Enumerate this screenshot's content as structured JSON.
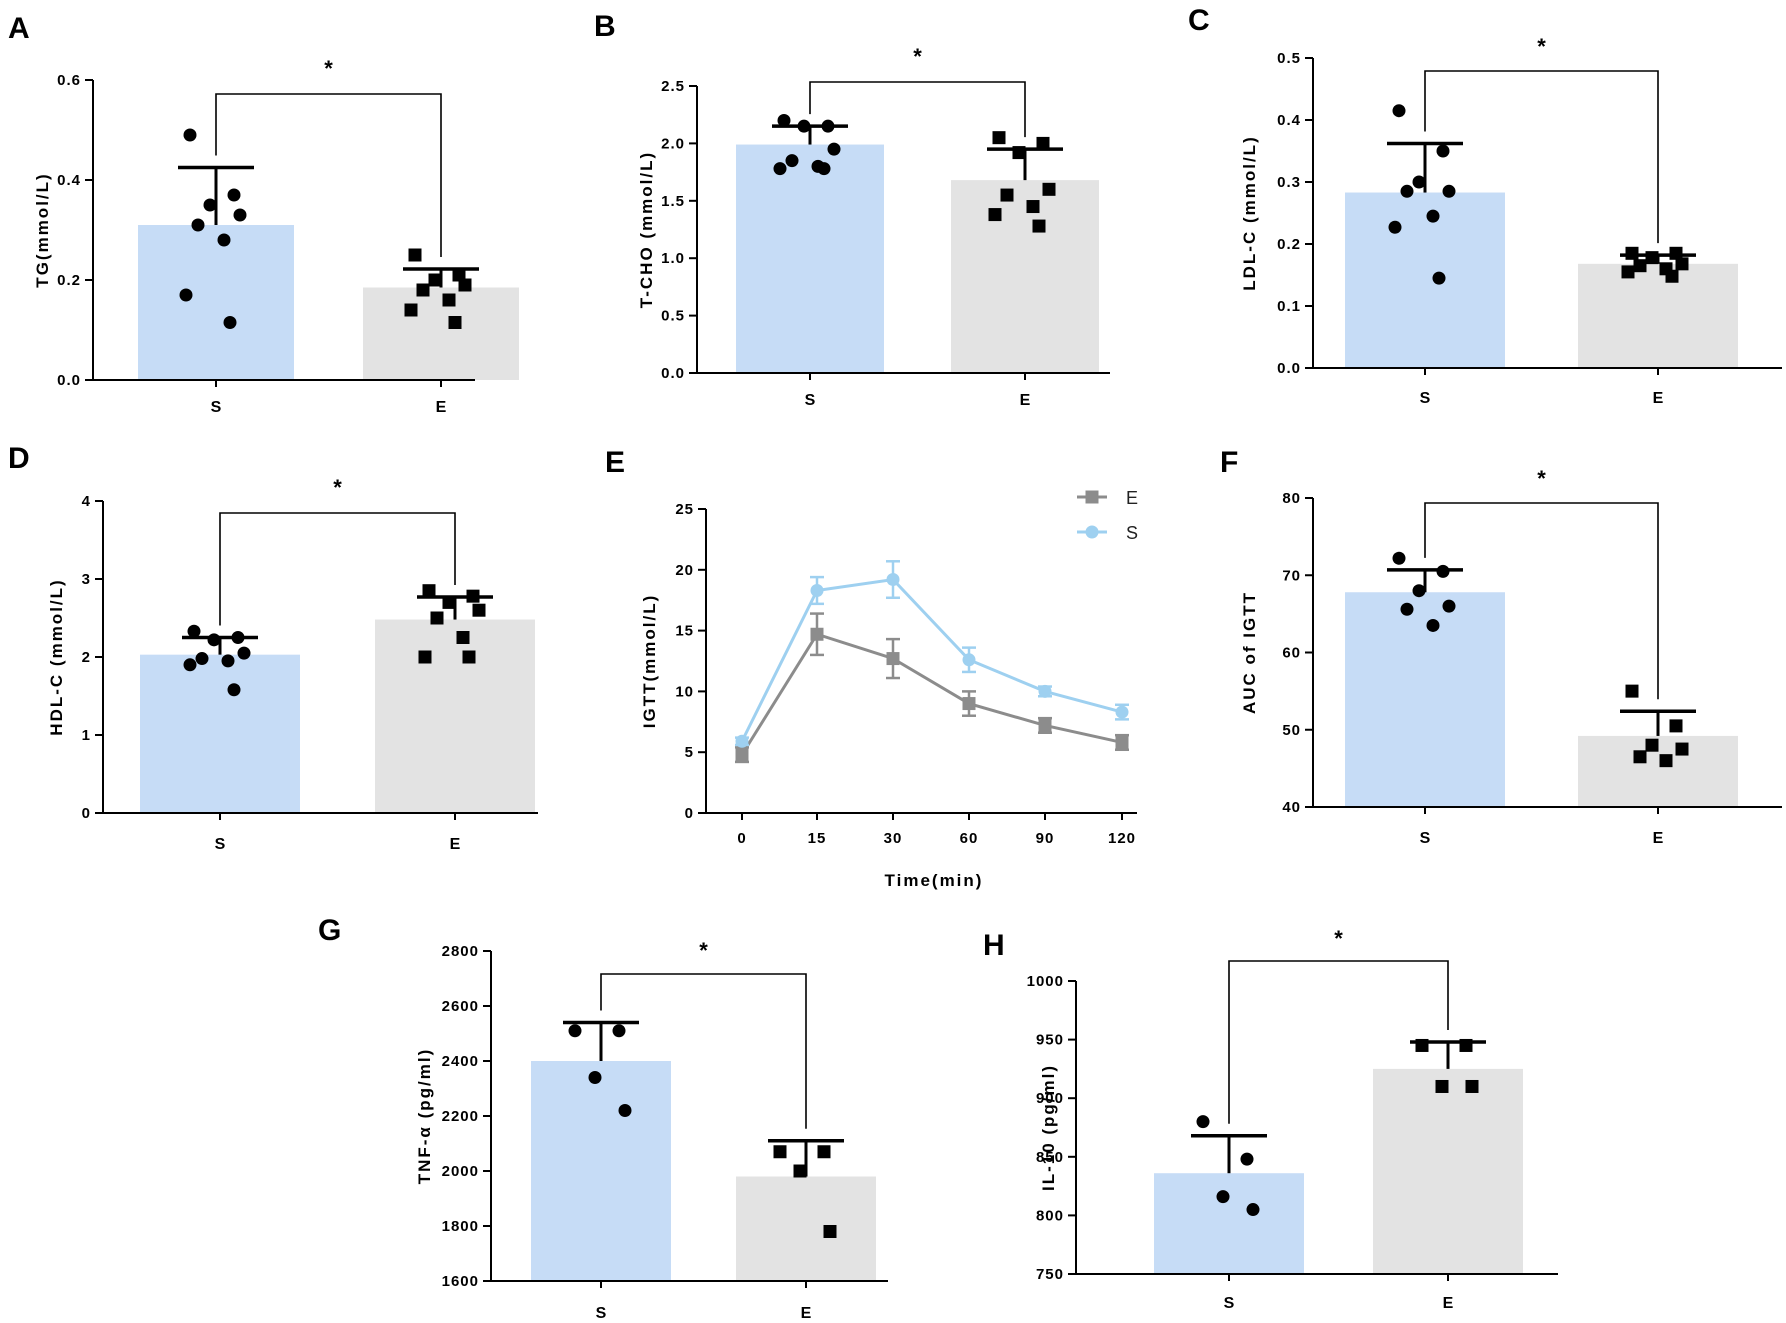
{
  "figure": {
    "colors": {
      "S": "#c6dcf6",
      "E": "#e3e3e3",
      "line_S": "#9ed0f0",
      "line_E": "#8c8c8c",
      "ink": "#000000"
    }
  },
  "chart_data": [
    {
      "panel": "A",
      "type": "bar",
      "ylabel": "TG(mmol/L)",
      "ylim": [
        0,
        0.6
      ],
      "yticks": [
        0.0,
        0.2,
        0.4,
        0.6
      ],
      "yticklabels": [
        "0.0",
        "0.2",
        "0.4",
        "0.6"
      ],
      "categories": [
        "S",
        "E"
      ],
      "means": [
        0.31,
        0.185
      ],
      "sd_upper": [
        0.425,
        0.222
      ],
      "points": [
        [
          0.49,
          0.37,
          0.35,
          0.33,
          0.31,
          0.28,
          0.17,
          0.115
        ],
        [
          0.25,
          0.21,
          0.2,
          0.19,
          0.18,
          0.16,
          0.14,
          0.115
        ]
      ],
      "significance": "*"
    },
    {
      "panel": "B",
      "type": "bar",
      "ylabel": "T-CHO (mmol/L)",
      "ylim": [
        0,
        2.5
      ],
      "yticks": [
        0,
        0.5,
        1.0,
        1.5,
        2.0,
        2.5
      ],
      "yticklabels": [
        "0.0",
        "0.5",
        "1.0",
        "1.5",
        "2.0",
        "2.5"
      ],
      "categories": [
        "S",
        "E"
      ],
      "means": [
        1.99,
        1.68
      ],
      "sd_upper": [
        2.15,
        1.95
      ],
      "points": [
        [
          2.2,
          2.15,
          2.15,
          1.95,
          1.85,
          1.8,
          1.78,
          1.78
        ],
        [
          2.05,
          2.0,
          1.92,
          1.6,
          1.55,
          1.45,
          1.38,
          1.28
        ]
      ],
      "significance": "*"
    },
    {
      "panel": "C",
      "type": "bar",
      "ylabel": "LDL-C (mmol/L)",
      "ylim": [
        0,
        0.5
      ],
      "yticks": [
        0,
        0.1,
        0.2,
        0.3,
        0.4,
        0.5
      ],
      "yticklabels": [
        "0.0",
        "0.1",
        "0.2",
        "0.3",
        "0.4",
        "0.5"
      ],
      "categories": [
        "S",
        "E"
      ],
      "means": [
        0.283,
        0.168
      ],
      "sd_upper": [
        0.362,
        0.182
      ],
      "points": [
        [
          0.415,
          0.35,
          0.3,
          0.285,
          0.285,
          0.245,
          0.227,
          0.145
        ],
        [
          0.185,
          0.185,
          0.178,
          0.168,
          0.165,
          0.16,
          0.155,
          0.148
        ]
      ],
      "significance": "*"
    },
    {
      "panel": "D",
      "type": "bar",
      "ylabel": "HDL-C (mmol/L)",
      "ylim": [
        0,
        4
      ],
      "yticks": [
        0,
        1,
        2,
        3,
        4
      ],
      "yticklabels": [
        "0",
        "1",
        "2",
        "3",
        "4"
      ],
      "categories": [
        "S",
        "E"
      ],
      "means": [
        2.03,
        2.48
      ],
      "sd_upper": [
        2.25,
        2.77
      ],
      "points": [
        [
          2.33,
          2.25,
          2.22,
          2.05,
          1.98,
          1.95,
          1.9,
          1.58
        ],
        [
          2.85,
          2.78,
          2.7,
          2.6,
          2.5,
          2.25,
          2.0,
          2.0
        ]
      ],
      "significance": "*"
    },
    {
      "panel": "E",
      "type": "line",
      "ylabel": "IGTT(mmol/L)",
      "xlabel": "Time(min)",
      "ylim": [
        0,
        25
      ],
      "yticks": [
        0,
        5,
        10,
        15,
        20,
        25
      ],
      "yticklabels": [
        "0",
        "5",
        "10",
        "15",
        "20",
        "25"
      ],
      "x": [
        0,
        15,
        30,
        60,
        90,
        120
      ],
      "xticklabels": [
        "0",
        "15",
        "30",
        "60",
        "90",
        "120"
      ],
      "series": [
        {
          "name": "E",
          "values": [
            4.8,
            14.7,
            12.7,
            9.0,
            7.2,
            5.8
          ],
          "errors": [
            0.6,
            1.7,
            1.6,
            1.0,
            0.6,
            0.6
          ]
        },
        {
          "name": "S",
          "values": [
            5.9,
            18.3,
            19.2,
            12.6,
            10.0,
            8.3
          ],
          "errors": [
            0.3,
            1.1,
            1.5,
            1.0,
            0.4,
            0.6
          ]
        }
      ]
    },
    {
      "panel": "F",
      "type": "bar",
      "ylabel": "AUC of IGTT",
      "ylim": [
        40,
        80
      ],
      "yticks": [
        40,
        50,
        60,
        70,
        80
      ],
      "yticklabels": [
        "40",
        "50",
        "60",
        "70",
        "80"
      ],
      "categories": [
        "S",
        "E"
      ],
      "means": [
        67.8,
        49.2
      ],
      "sd_upper": [
        70.7,
        52.4
      ],
      "points": [
        [
          72.2,
          70.5,
          68.0,
          66.0,
          65.6,
          63.5
        ],
        [
          55.0,
          50.5,
          48.0,
          47.5,
          46.5,
          46.0
        ]
      ],
      "significance": "*"
    },
    {
      "panel": "G",
      "type": "bar",
      "ylabel": "TNF-α (pg/ml)",
      "ylim": [
        1600,
        2800
      ],
      "yticks": [
        1600,
        1800,
        2000,
        2200,
        2400,
        2600,
        2800
      ],
      "yticklabels": [
        "1600",
        "1800",
        "2000",
        "2200",
        "2400",
        "2600",
        "2800"
      ],
      "categories": [
        "S",
        "E"
      ],
      "means": [
        2400,
        1980
      ],
      "sd_upper": [
        2540,
        2110
      ],
      "points": [
        [
          2510,
          2510,
          2340,
          2220
        ],
        [
          2070,
          2070,
          2000,
          1780
        ]
      ],
      "significance": "*"
    },
    {
      "panel": "H",
      "type": "bar",
      "ylabel": "IL-10 (pg/ml)",
      "ylim": [
        750,
        1000
      ],
      "yticks": [
        750,
        800,
        850,
        900,
        950,
        1000
      ],
      "yticklabels": [
        "750",
        "800",
        "850",
        "900",
        "950",
        "1000"
      ],
      "categories": [
        "S",
        "E"
      ],
      "means": [
        836,
        925
      ],
      "sd_upper": [
        868,
        948
      ],
      "points": [
        [
          880,
          848,
          816,
          805
        ],
        [
          945,
          945,
          910,
          910
        ]
      ],
      "significance": "*"
    }
  ]
}
